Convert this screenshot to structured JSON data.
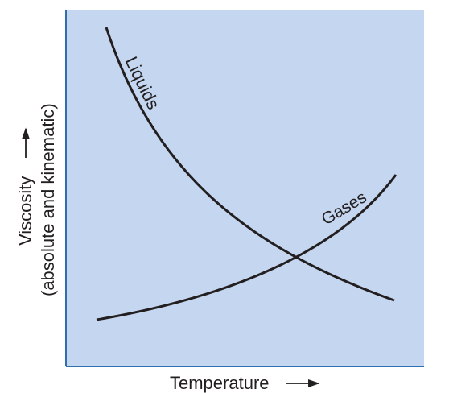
{
  "chart_data": {
    "type": "line",
    "title": "",
    "xlabel": "Temperature",
    "ylabel_line1": "Viscosity",
    "ylabel_line2": "(absolute and kinematic)",
    "x_ticks": [],
    "y_ticks": [],
    "grid": false,
    "legend": "none",
    "colors": {
      "plot_background": "#c5d7f0",
      "axis": "#2f6fae",
      "curve": "#231f20",
      "text": "#231f20"
    },
    "series": [
      {
        "name": "Liquids",
        "trend": "decreasing",
        "relative_values": [
          1.0,
          0.78,
          0.6,
          0.46,
          0.35,
          0.26,
          0.19,
          0.14,
          0.11,
          0.09
        ]
      },
      {
        "name": "Gases",
        "trend": "increasing",
        "relative_values": [
          0.09,
          0.11,
          0.13,
          0.16,
          0.2,
          0.25,
          0.31,
          0.38,
          0.46,
          0.54
        ]
      }
    ]
  }
}
